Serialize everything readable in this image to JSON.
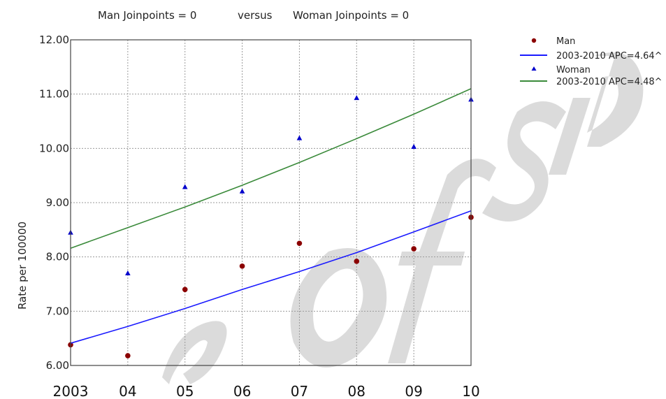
{
  "chart_data": {
    "type": "scatter",
    "title_left": "Man Joinpoints = 0",
    "title_mid": "versus",
    "title_right": "Woman Joinpoints = 0",
    "ylabel": "Rate per 100000",
    "ylim": [
      6.0,
      12.0
    ],
    "yticks": [
      "6.00",
      "7.00",
      "8.00",
      "9.00",
      "10.00",
      "11.00",
      "12.00"
    ],
    "x": [
      2003,
      2004,
      2005,
      2006,
      2007,
      2008,
      2009,
      2010
    ],
    "xticks": [
      "2003",
      "04",
      "05",
      "06",
      "07",
      "08",
      "09",
      "10"
    ],
    "grid": true,
    "legend_position": "top-right outside",
    "series": [
      {
        "name": "Man",
        "kind": "points",
        "marker": "circle",
        "color": "#8b0000",
        "values": [
          6.38,
          6.18,
          7.4,
          7.83,
          8.25,
          7.92,
          8.15,
          8.73
        ]
      },
      {
        "name": "2003-2010 APC=4.64^",
        "kind": "line",
        "color": "#1a1aff",
        "values": [
          6.41,
          6.72,
          7.05,
          7.4,
          7.73,
          8.08,
          8.46,
          8.85
        ]
      },
      {
        "name": "Woman",
        "kind": "points",
        "marker": "triangle",
        "color": "#0000cc",
        "values": [
          8.45,
          7.7,
          9.29,
          9.21,
          10.19,
          10.93,
          10.03,
          10.9
        ]
      },
      {
        "name": "2003-2010 APC=4.48^",
        "kind": "line",
        "color": "#3a8a3a",
        "values": [
          8.16,
          8.54,
          8.92,
          9.32,
          9.74,
          10.18,
          10.63,
          11.1
        ]
      }
    ]
  },
  "watermark": {
    "color": "#bdbdbd"
  }
}
